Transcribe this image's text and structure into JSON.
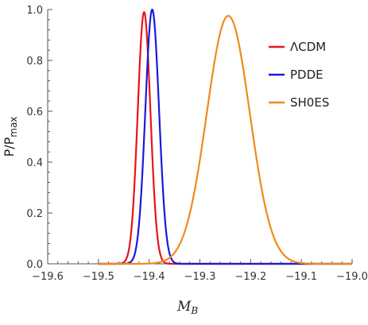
{
  "chart_data": {
    "type": "line",
    "title": "",
    "xlabel": {
      "main": "M",
      "sub": "B"
    },
    "ylabel": {
      "main": "P/P",
      "sub": "max"
    },
    "xlim": [
      -19.6,
      -19.0
    ],
    "ylim": [
      0,
      1.0
    ],
    "xticks": [
      "-19.6",
      "-19.5",
      "-19.4",
      "-19.3",
      "-19.2",
      "-19.1",
      "-19.0"
    ],
    "yticks": [
      "0.0",
      "0.2",
      "0.4",
      "0.6",
      "0.8",
      "1.0"
    ],
    "x_range_plotted": [
      -19.5,
      -19.0
    ],
    "legend_position": "top-right",
    "series": [
      {
        "name": "ΛCDM",
        "color": "#e8141b",
        "center": -19.41,
        "sigma": 0.0125,
        "peak": 0.99
      },
      {
        "name": "PDDE",
        "color": "#1a1ad8",
        "center": -19.394,
        "sigma": 0.0135,
        "peak": 1.0
      },
      {
        "name": "SH0ES",
        "color": "#f08a1c",
        "center": -19.244,
        "sigma": 0.0425,
        "peak": 0.975
      }
    ]
  }
}
